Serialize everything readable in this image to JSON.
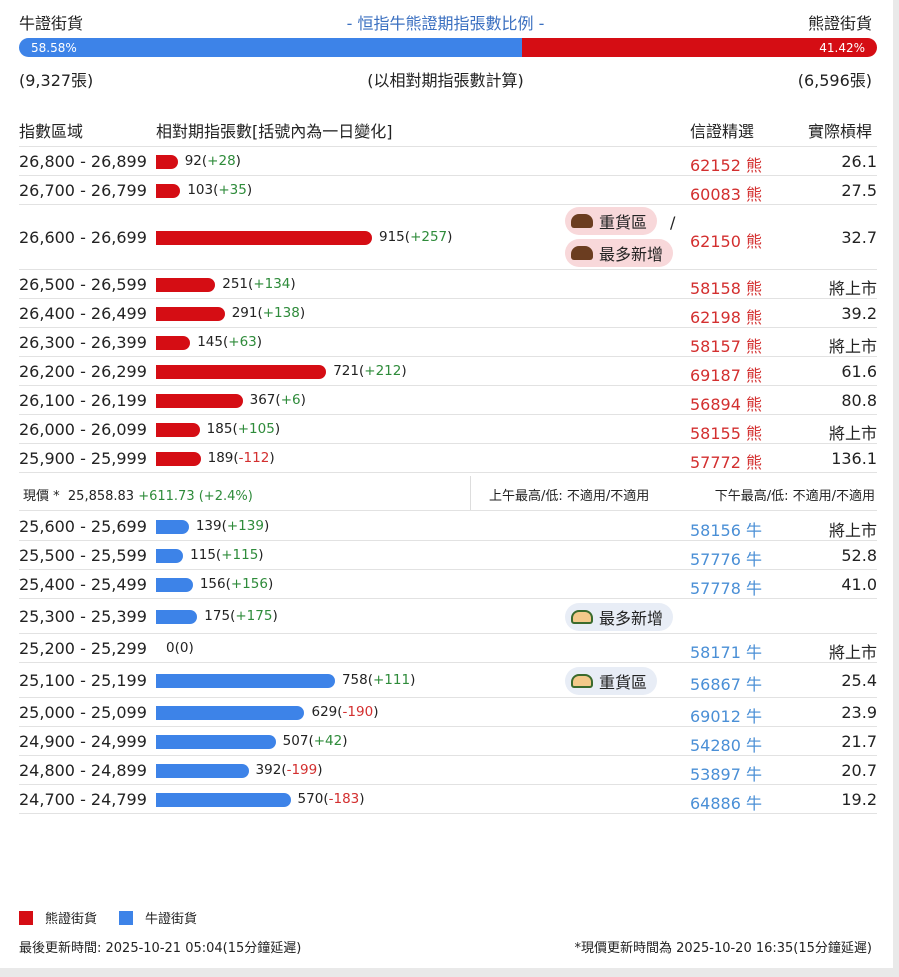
{
  "header": {
    "bull_label": "牛證街貨",
    "title": "- 恒指牛熊證期指張數比例 -",
    "bear_label": "熊證街貨"
  },
  "ratio": {
    "bull_pct": "58.58%",
    "bear_pct": "41.42%",
    "bull_fraction": 0.5858,
    "bull_color": "#3d83e8",
    "bear_color": "#d50d14"
  },
  "counts": {
    "bull": "(9,327張)",
    "note": "(以相對期指張數計算)",
    "bear": "(6,596張)"
  },
  "columns": {
    "range": "指數區域",
    "contracts": "相對期指張數[括號內為一日變化]",
    "pick": "信證精選",
    "leverage": "實際槓桿"
  },
  "bear_rows": [
    {
      "range": "26,800 - 26,899",
      "value": 92,
      "total": "92",
      "change": "+28",
      "code": "62152 熊",
      "leverage": "26.1"
    },
    {
      "range": "26,700 - 26,799",
      "value": 103,
      "total": "103",
      "change": "+35",
      "code": "60083 熊",
      "leverage": "27.5"
    },
    {
      "range": "26,600 - 26,699",
      "value": 915,
      "total": "915",
      "change": "+257",
      "code": "62150 熊",
      "leverage": "32.7",
      "tags": [
        "重貨區",
        "最多新增"
      ],
      "tag_separator": "/"
    },
    {
      "range": "26,500 - 26,599",
      "value": 251,
      "total": "251",
      "change": "+134",
      "code": "58158 熊",
      "leverage": "將上市"
    },
    {
      "range": "26,400 - 26,499",
      "value": 291,
      "total": "291",
      "change": "+138",
      "code": "62198 熊",
      "leverage": "39.2"
    },
    {
      "range": "26,300 - 26,399",
      "value": 145,
      "total": "145",
      "change": "+63",
      "code": "58157 熊",
      "leverage": "將上市"
    },
    {
      "range": "26,200 - 26,299",
      "value": 721,
      "total": "721",
      "change": "+212",
      "code": "69187 熊",
      "leverage": "61.6"
    },
    {
      "range": "26,100 - 26,199",
      "value": 367,
      "total": "367",
      "change": "+6",
      "code": "56894 熊",
      "leverage": "80.8"
    },
    {
      "range": "26,000 - 26,099",
      "value": 185,
      "total": "185",
      "change": "+105",
      "code": "58155 熊",
      "leverage": "將上市"
    },
    {
      "range": "25,900 - 25,999",
      "value": 189,
      "total": "189",
      "change": "-112",
      "code": "57772 熊",
      "leverage": "136.1"
    }
  ],
  "spot": {
    "label": "現價 *",
    "price": "25,858.83",
    "change": "+611.73 (+2.4%)",
    "am": "上午最高/低: 不適用/不適用",
    "pm": "下午最高/低: 不適用/不適用"
  },
  "bull_rows": [
    {
      "range": "25,600 - 25,699",
      "value": 139,
      "total": "139",
      "change": "+139",
      "code": "58156 牛",
      "leverage": "將上市"
    },
    {
      "range": "25,500 - 25,599",
      "value": 115,
      "total": "115",
      "change": "+115",
      "code": "57776 牛",
      "leverage": "52.8"
    },
    {
      "range": "25,400 - 25,499",
      "value": 156,
      "total": "156",
      "change": "+156",
      "code": "57778 牛",
      "leverage": "41.0"
    },
    {
      "range": "25,300 - 25,399",
      "value": 175,
      "total": "175",
      "change": "+175",
      "code": "",
      "leverage": "",
      "tags": [
        "最多新增"
      ]
    },
    {
      "range": "25,200 - 25,299",
      "value": 0,
      "total": "0",
      "change": "0",
      "code": "58171 牛",
      "leverage": "將上市"
    },
    {
      "range": "25,100 - 25,199",
      "value": 758,
      "total": "758",
      "change": "+111",
      "code": "56867 牛",
      "leverage": "25.4",
      "tags": [
        "重貨區"
      ]
    },
    {
      "range": "25,000 - 25,099",
      "value": 629,
      "total": "629",
      "change": "-190",
      "code": "69012 牛",
      "leverage": "23.9"
    },
    {
      "range": "24,900 - 24,999",
      "value": 507,
      "total": "507",
      "change": "+42",
      "code": "54280 牛",
      "leverage": "21.7"
    },
    {
      "range": "24,800 - 24,899",
      "value": 392,
      "total": "392",
      "change": "-199",
      "code": "53897 牛",
      "leverage": "20.7"
    },
    {
      "range": "24,700 - 24,799",
      "value": 570,
      "total": "570",
      "change": "-183",
      "code": "64886 牛",
      "leverage": "19.2"
    }
  ],
  "legend": {
    "bear": "熊證街貨",
    "bull": "牛證街貨"
  },
  "footer": {
    "updated": "最後更新時間: 2025-10-21 05:04(15分鐘延遲)",
    "price_updated": "*現價更新時間為 2025-10-20 16:35(15分鐘延遲)"
  }
}
